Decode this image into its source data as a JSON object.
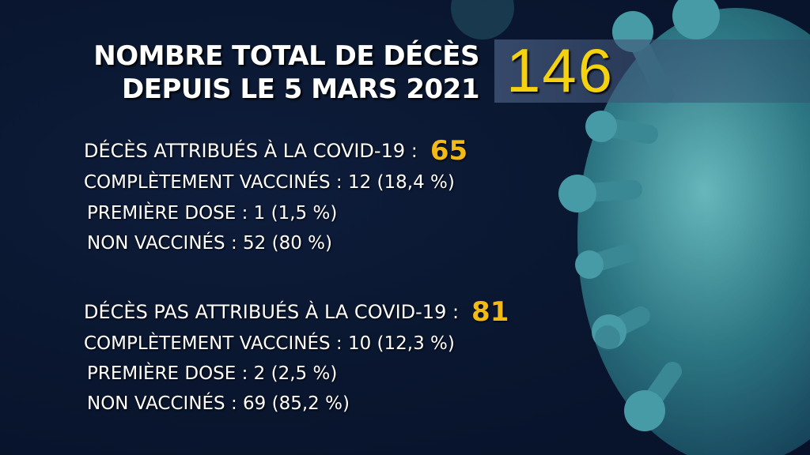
{
  "title": {
    "line1": "NOMBRE TOTAL DE DÉCÈS",
    "line2": "DEPUIS LE 5 MARS 2021"
  },
  "total": "146",
  "covid": {
    "label": "DÉCÈS ATTRIBUÉS À LA COVID-19 :",
    "value": "65",
    "fully_vaccinated": "COMPLÈTEMENT VACCINÉS : 12 (18,4 %)",
    "first_dose": "PREMIÈRE DOSE : 1 (1,5 %)",
    "unvaccinated": "NON VACCINÉS : 52 (80 %)"
  },
  "non_covid": {
    "label": "DÉCÈS PAS ATTRIBUÉS À LA COVID-19 :",
    "value": "81",
    "fully_vaccinated": "COMPLÈTEMENT VACCINÉS : 10 (12,3 %)",
    "first_dose": "PREMIÈRE DOSE : 2 (2,5 %)",
    "unvaccinated": "NON VACCINÉS : 69 (85,2 %)"
  },
  "colors": {
    "background": "#0a1730",
    "highlight_total": "#f4d20f",
    "highlight_counts": "#f2ba14",
    "virus": "#3d8f9a"
  }
}
